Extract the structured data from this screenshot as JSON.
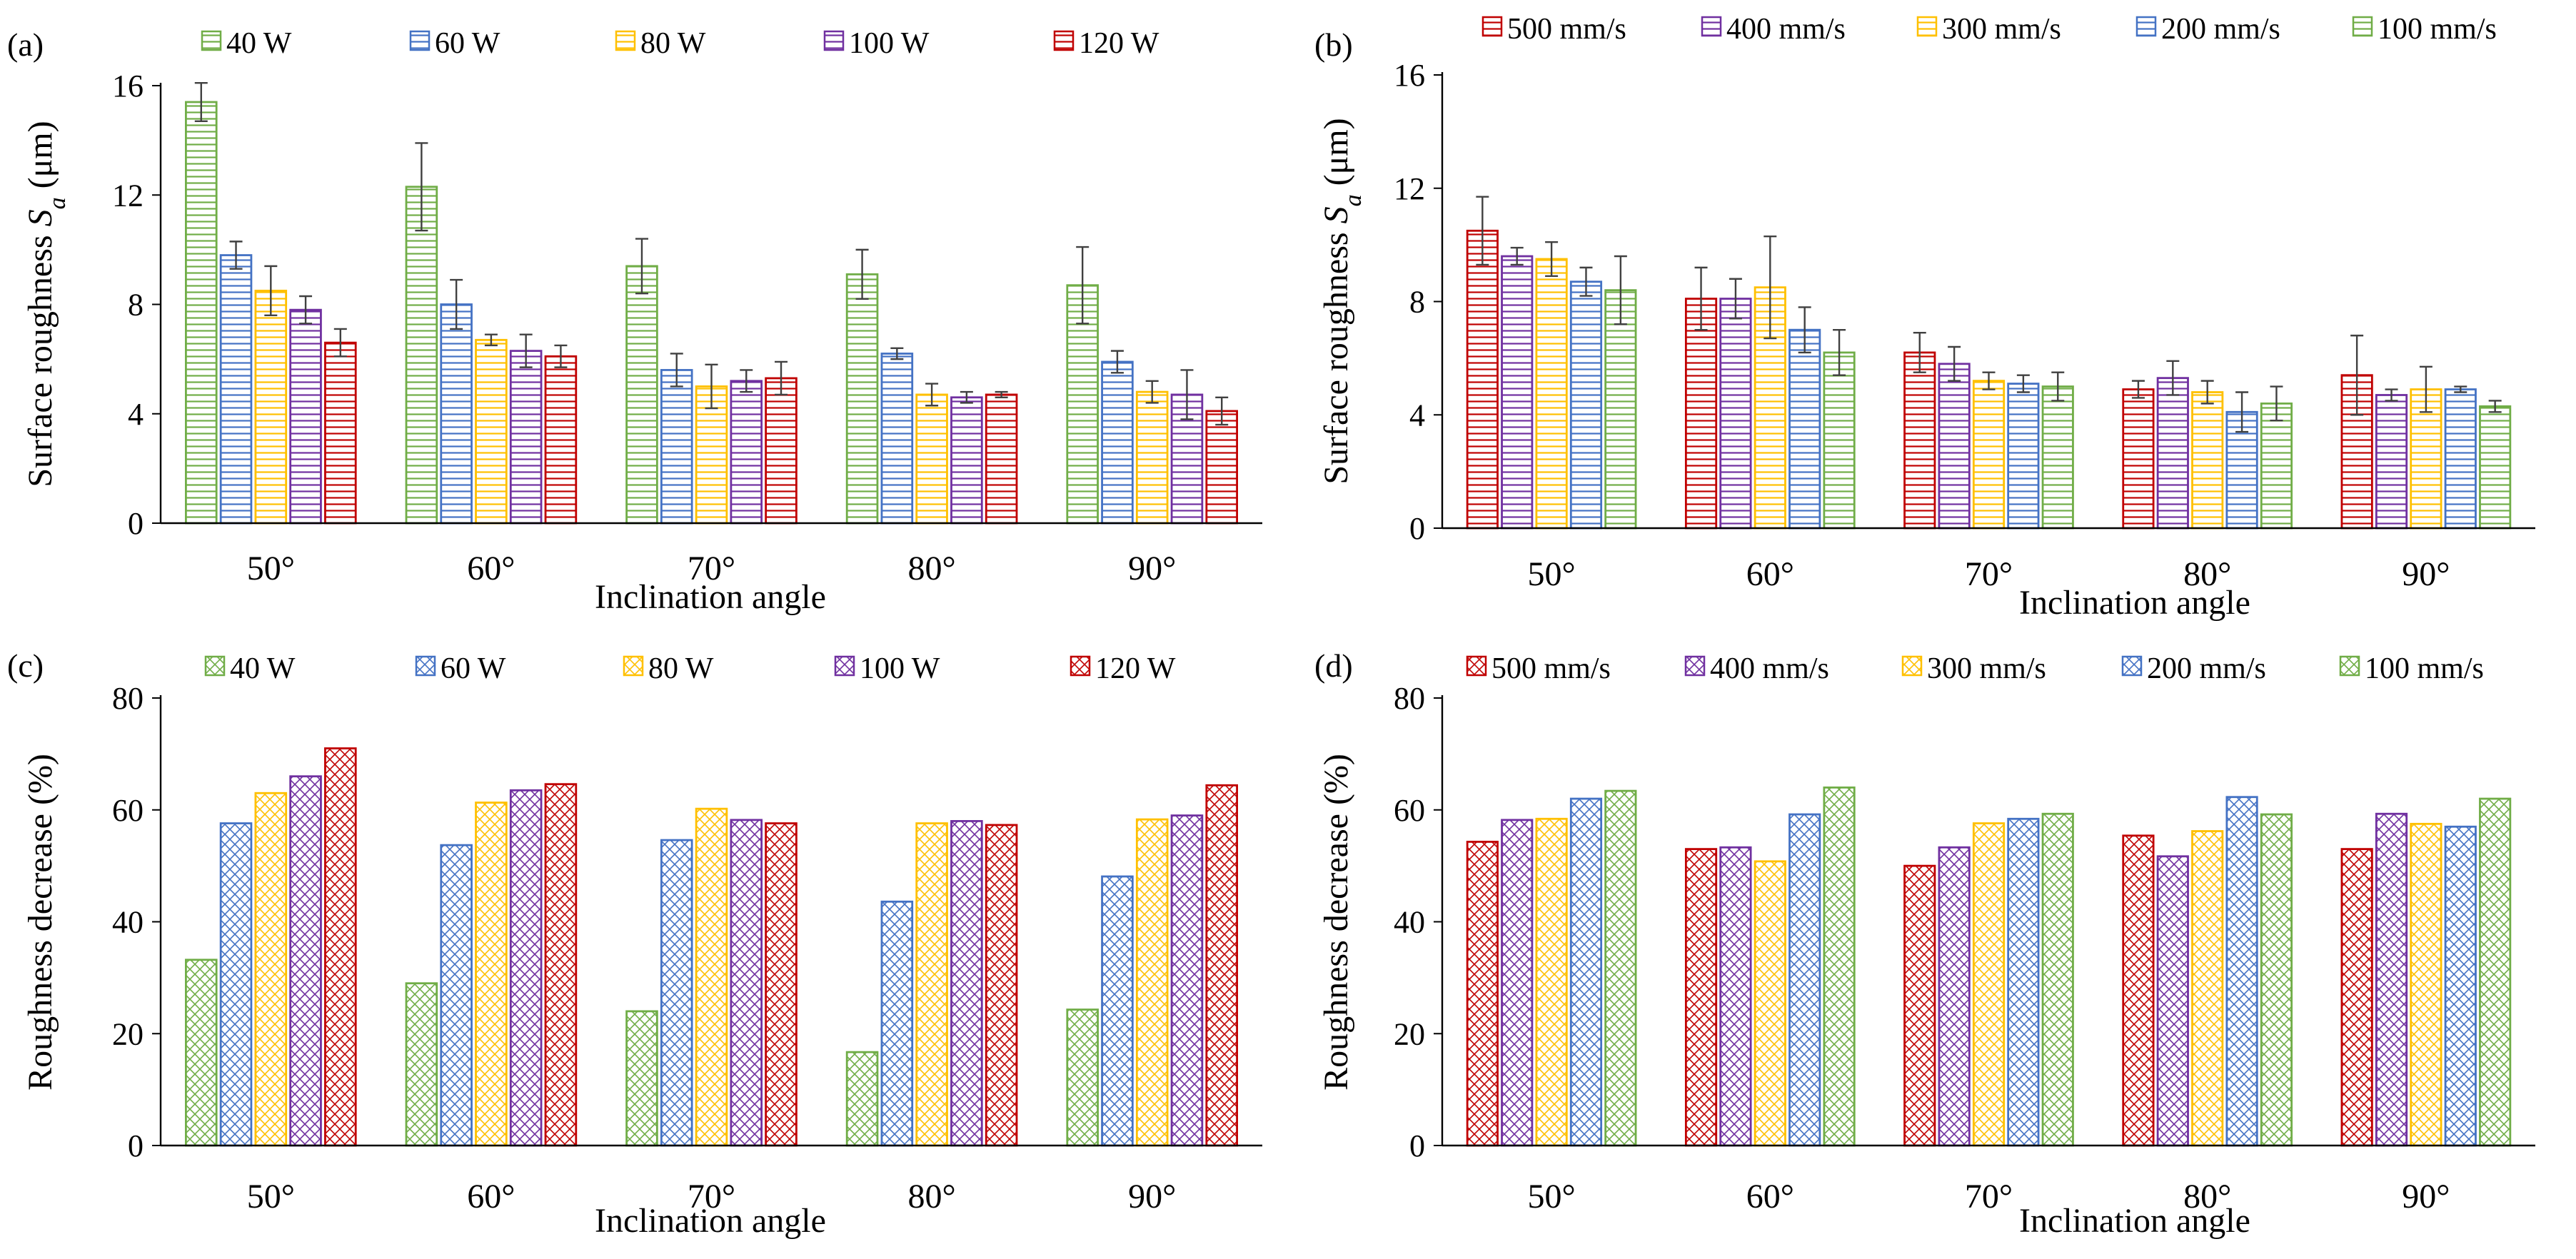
{
  "chart_data": [
    {
      "panel": "(a)",
      "type": "bar",
      "pattern": "horizontal-lines",
      "xlabel": "Inclination angle",
      "ylabel": "Surface roughness S_a (μm)",
      "ylabel_parts": {
        "pre": "Surface roughness ",
        "sym": "S",
        "sub": "a",
        "post": " (μm)"
      },
      "ylim": [
        0,
        16
      ],
      "yticks": [
        "0",
        "4",
        "8",
        "12",
        "16"
      ],
      "categories": [
        "50°",
        "60°",
        "70°",
        "80°",
        "90°"
      ],
      "series": [
        {
          "name": "40 W",
          "color": "#70AD47",
          "values": [
            15.4,
            12.3,
            9.4,
            9.1,
            8.7
          ],
          "errors": [
            0.7,
            1.6,
            1.0,
            0.9,
            1.4
          ]
        },
        {
          "name": "60 W",
          "color": "#4472C4",
          "values": [
            9.8,
            8.0,
            5.6,
            6.2,
            5.9
          ],
          "errors": [
            0.5,
            0.9,
            0.6,
            0.2,
            0.4
          ]
        },
        {
          "name": "80 W",
          "color": "#FFC000",
          "values": [
            8.5,
            6.7,
            5.0,
            4.7,
            4.8
          ],
          "errors": [
            0.9,
            0.2,
            0.8,
            0.4,
            0.4
          ]
        },
        {
          "name": "100 W",
          "color": "#7030A0",
          "values": [
            7.8,
            6.3,
            5.2,
            4.6,
            4.7
          ],
          "errors": [
            0.5,
            0.6,
            0.4,
            0.2,
            0.9
          ]
        },
        {
          "name": "120 W",
          "color": "#C00000",
          "values": [
            6.6,
            6.1,
            5.3,
            4.7,
            4.1
          ],
          "errors": [
            0.5,
            0.4,
            0.6,
            0.1,
            0.5
          ]
        }
      ]
    },
    {
      "panel": "(b)",
      "type": "bar",
      "pattern": "horizontal-lines",
      "xlabel": "Inclination angle",
      "ylabel": "Surface roughness S_a (μm)",
      "ylabel_parts": {
        "pre": "Surface roughness ",
        "sym": "S",
        "sub": "a",
        "post": " (μm)"
      },
      "ylim": [
        0,
        16
      ],
      "yticks": [
        "0",
        "4",
        "8",
        "12",
        "16"
      ],
      "categories": [
        "50°",
        "60°",
        "70°",
        "80°",
        "90°"
      ],
      "series": [
        {
          "name": "500 mm/s",
          "color": "#C00000",
          "values": [
            10.5,
            8.1,
            6.2,
            4.9,
            5.4
          ],
          "errors": [
            1.2,
            1.1,
            0.7,
            0.3,
            1.4
          ]
        },
        {
          "name": "400 mm/s",
          "color": "#7030A0",
          "values": [
            9.6,
            8.1,
            5.8,
            5.3,
            4.7
          ],
          "errors": [
            0.3,
            0.7,
            0.6,
            0.6,
            0.2
          ]
        },
        {
          "name": "300 mm/s",
          "color": "#FFC000",
          "values": [
            9.5,
            8.5,
            5.2,
            4.8,
            4.9
          ],
          "errors": [
            0.6,
            1.8,
            0.3,
            0.4,
            0.8
          ]
        },
        {
          "name": "200 mm/s",
          "color": "#4472C4",
          "values": [
            8.7,
            7.0,
            5.1,
            4.1,
            4.9
          ],
          "errors": [
            0.5,
            0.8,
            0.3,
            0.7,
            0.1
          ]
        },
        {
          "name": "100 mm/s",
          "color": "#70AD47",
          "values": [
            8.4,
            6.2,
            5.0,
            4.4,
            4.3
          ],
          "errors": [
            1.2,
            0.8,
            0.5,
            0.6,
            0.2
          ]
        }
      ]
    },
    {
      "panel": "(c)",
      "type": "bar",
      "pattern": "crosshatch",
      "xlabel": "Inclination angle",
      "ylabel": "Roughness decrease (%)",
      "ylim": [
        0,
        80
      ],
      "yticks": [
        "0",
        "20",
        "40",
        "60",
        "80"
      ],
      "categories": [
        "50°",
        "60°",
        "70°",
        "80°",
        "90°"
      ],
      "series": [
        {
          "name": "40 W",
          "color": "#70AD47",
          "values": [
            33.2,
            29.0,
            24.0,
            16.7,
            24.3
          ]
        },
        {
          "name": "60 W",
          "color": "#4472C4",
          "values": [
            57.6,
            53.7,
            54.6,
            43.6,
            48.1
          ]
        },
        {
          "name": "80 W",
          "color": "#FFC000",
          "values": [
            63.0,
            61.3,
            60.2,
            57.6,
            58.3
          ]
        },
        {
          "name": "100 W",
          "color": "#7030A0",
          "values": [
            66.0,
            63.5,
            58.2,
            58.0,
            59.0
          ]
        },
        {
          "name": "120 W",
          "color": "#C00000",
          "values": [
            71.0,
            64.6,
            57.6,
            57.3,
            64.4
          ]
        }
      ]
    },
    {
      "panel": "(d)",
      "type": "bar",
      "pattern": "crosshatch",
      "xlabel": "Inclination angle",
      "ylabel": "Roughness decrease (%)",
      "ylim": [
        0,
        80
      ],
      "yticks": [
        "0",
        "20",
        "40",
        "60",
        "80"
      ],
      "categories": [
        "50°",
        "60°",
        "70°",
        "80°",
        "90°"
      ],
      "series": [
        {
          "name": "500 mm/s",
          "color": "#C00000",
          "values": [
            54.3,
            53.0,
            50.0,
            55.4,
            53.0
          ]
        },
        {
          "name": "400 mm/s",
          "color": "#7030A0",
          "values": [
            58.2,
            53.3,
            53.3,
            51.7,
            59.3
          ]
        },
        {
          "name": "300 mm/s",
          "color": "#FFC000",
          "values": [
            58.4,
            50.8,
            57.6,
            56.2,
            57.5
          ]
        },
        {
          "name": "200 mm/s",
          "color": "#4472C4",
          "values": [
            62.0,
            59.2,
            58.4,
            62.3,
            57.0
          ]
        },
        {
          "name": "100 mm/s",
          "color": "#70AD47",
          "values": [
            63.4,
            64.0,
            59.3,
            59.2,
            62.0
          ]
        }
      ]
    }
  ]
}
